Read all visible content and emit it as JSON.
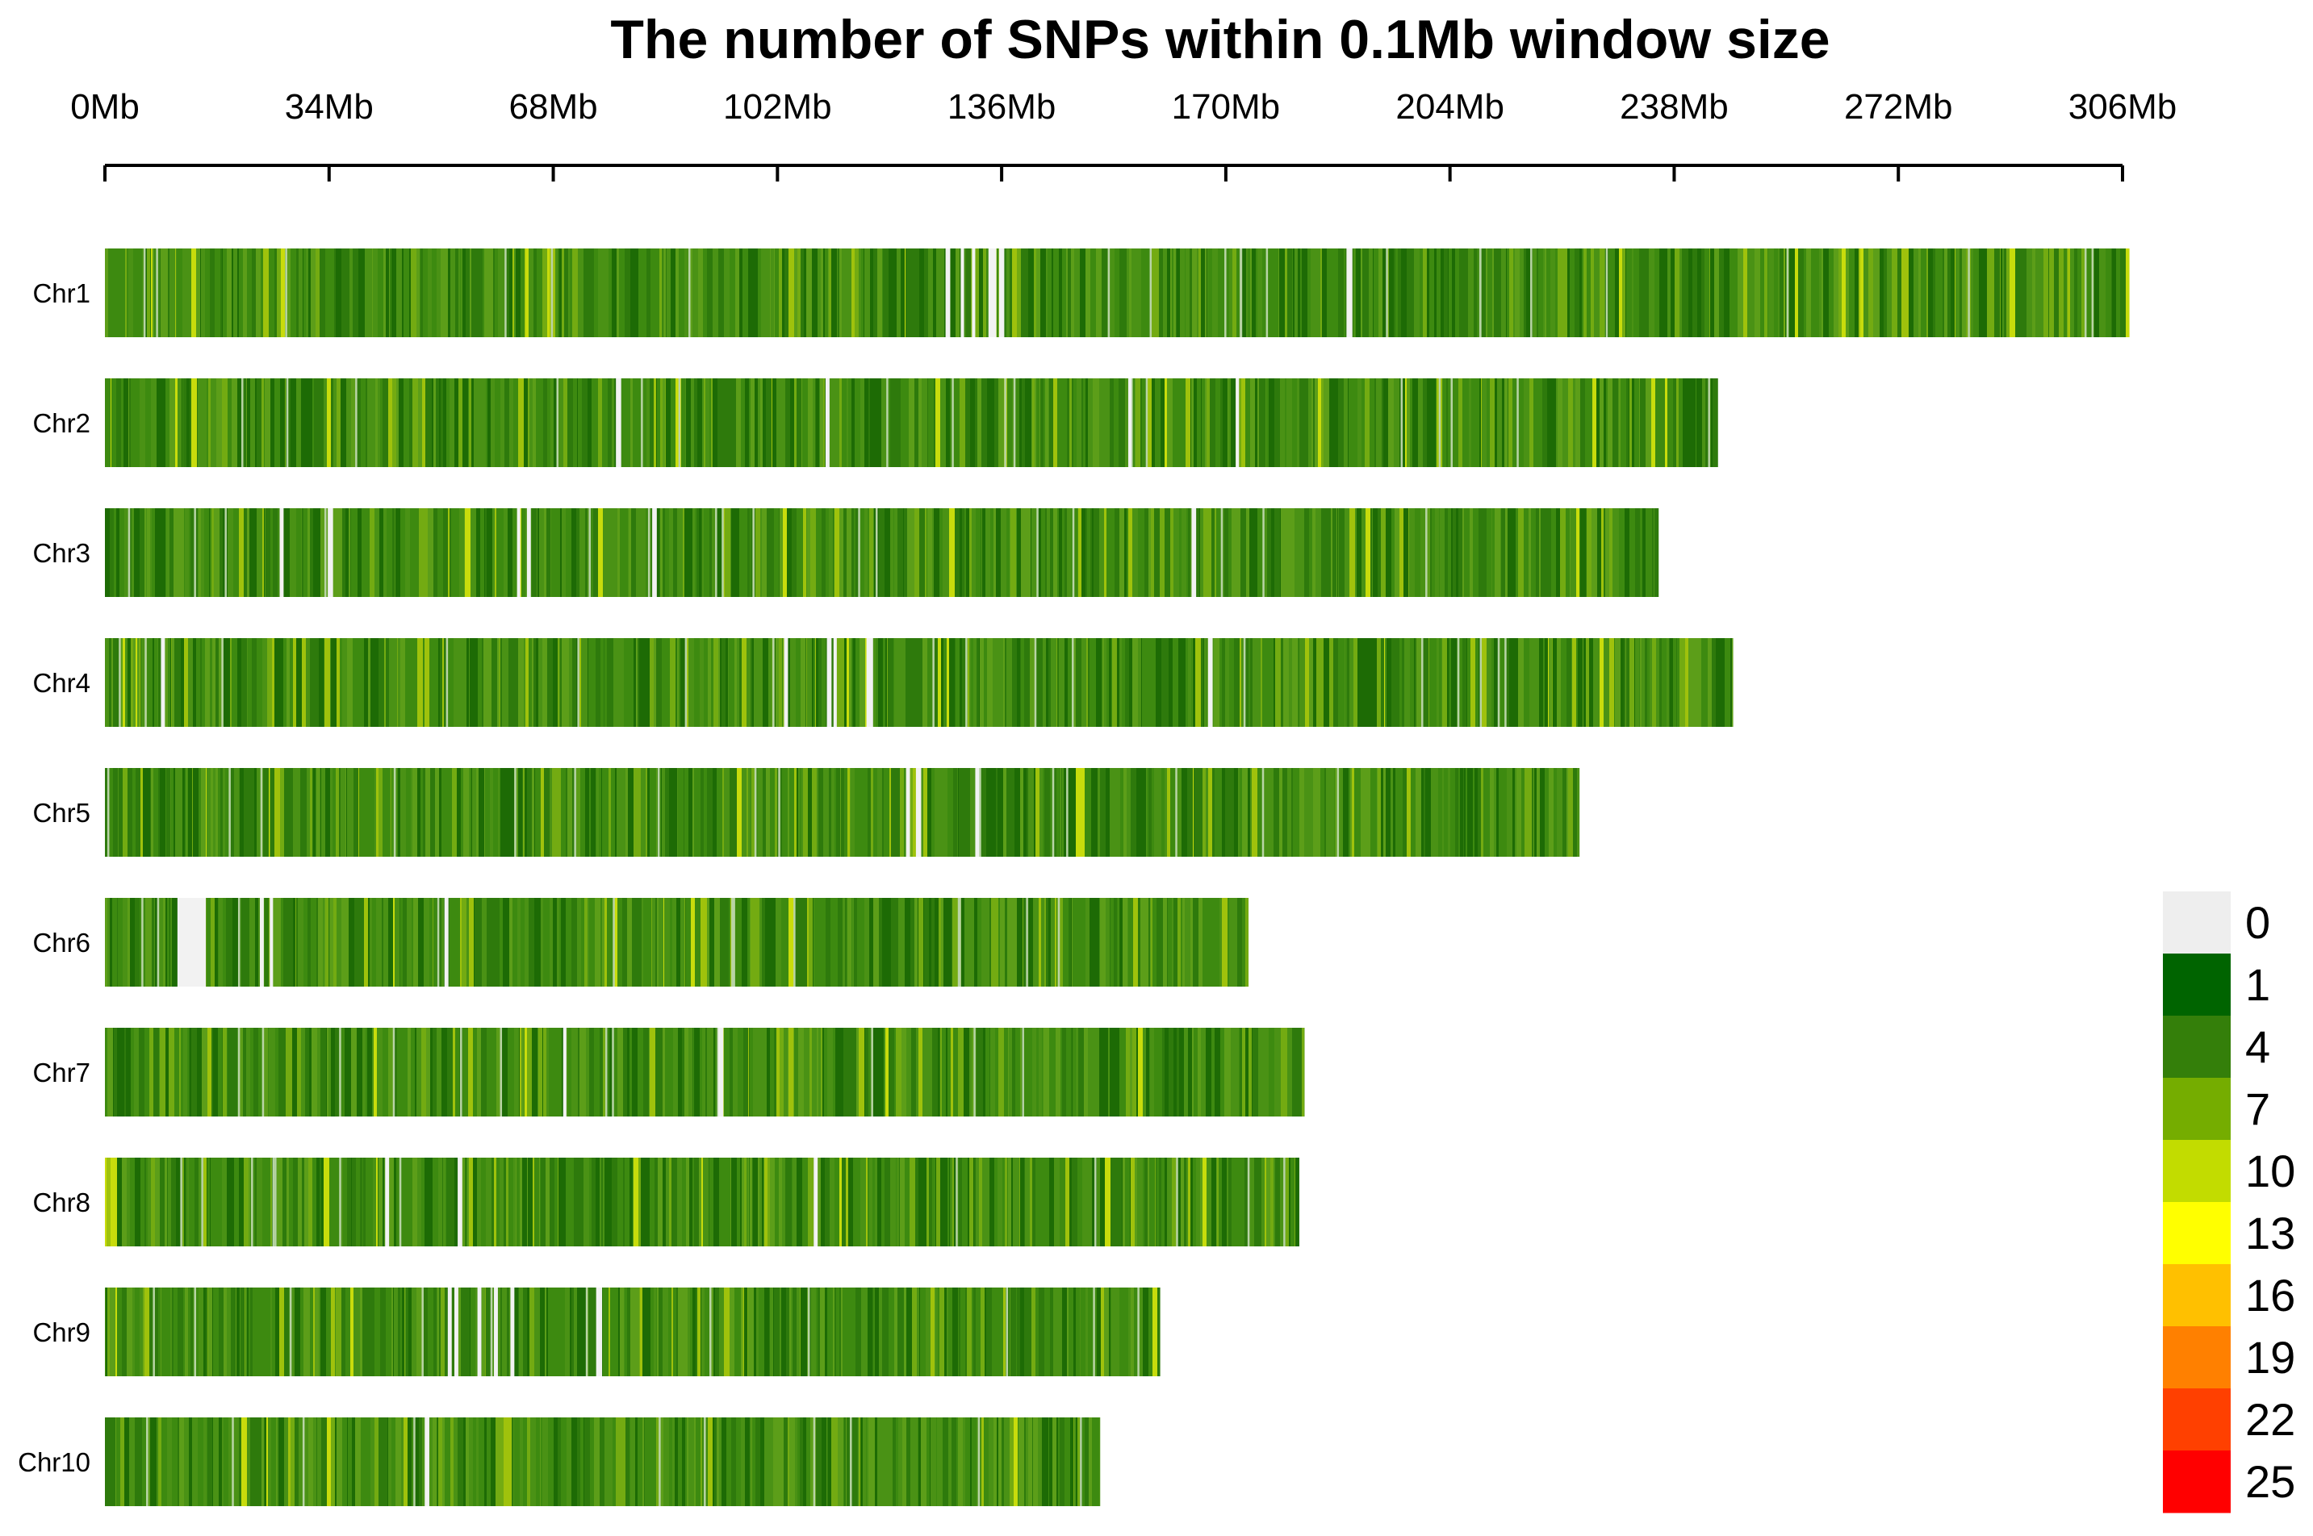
{
  "chart_data": {
    "type": "heatmap",
    "title": "The number of SNPs within 0.1Mb window size",
    "window_size_mb": 0.1,
    "x_unit": "Mb",
    "x_ticks": [
      0,
      34,
      68,
      102,
      136,
      170,
      204,
      238,
      272,
      306
    ],
    "x_tick_labels": [
      "0Mb",
      "34Mb",
      "68Mb",
      "102Mb",
      "136Mb",
      "170Mb",
      "204Mb",
      "238Mb",
      "272Mb",
      "306Mb"
    ],
    "xlim": [
      0,
      306
    ],
    "chromosomes": [
      {
        "name": "Chr1",
        "length_mb": 307.0,
        "gaps_mb": [
          [
            127.5,
            128.2
          ],
          [
            129.8,
            130.3
          ],
          [
            131.5,
            132.0
          ],
          [
            134.0,
            135.2
          ],
          [
            135.6,
            136.4
          ],
          [
            188.3,
            189.2
          ]
        ]
      },
      {
        "name": "Chr2",
        "length_mb": 244.6,
        "gaps_mb": [
          [
            77.5,
            78.3
          ],
          [
            109.3,
            109.9
          ],
          [
            155.2,
            155.7
          ],
          [
            171.5,
            172.0
          ]
        ]
      },
      {
        "name": "Chr3",
        "length_mb": 235.6,
        "gaps_mb": [
          [
            26.5,
            27.1
          ],
          [
            33.8,
            34.6
          ],
          [
            62.5,
            63.0
          ],
          [
            64.0,
            64.6
          ],
          [
            83.0,
            83.7
          ],
          [
            164.8,
            165.5
          ]
        ]
      },
      {
        "name": "Chr4",
        "length_mb": 246.9,
        "gaps_mb": [
          [
            8.5,
            9.1
          ],
          [
            103.0,
            103.6
          ],
          [
            109.5,
            110.2
          ],
          [
            110.5,
            111.0
          ],
          [
            115.5,
            116.5
          ],
          [
            167.3,
            168.0
          ]
        ]
      },
      {
        "name": "Chr5",
        "length_mb": 223.6,
        "gaps_mb": [
          [
            121.5,
            122.1
          ],
          [
            123.0,
            123.8
          ],
          [
            132.0,
            132.6
          ]
        ]
      },
      {
        "name": "Chr6",
        "length_mb": 173.4,
        "gaps_mb": [
          [
            11.0,
            15.3
          ],
          [
            23.5,
            24.1
          ],
          [
            25.0,
            25.5
          ],
          [
            51.5,
            52.1
          ]
        ]
      },
      {
        "name": "Chr7",
        "length_mb": 181.9,
        "gaps_mb": [
          [
            69.5,
            70.0
          ],
          [
            93.0,
            93.8
          ]
        ]
      },
      {
        "name": "Chr8",
        "length_mb": 181.1,
        "gaps_mb": [
          [
            42.5,
            43.1
          ],
          [
            53.5,
            54.2
          ],
          [
            107.5,
            108.1
          ]
        ]
      },
      {
        "name": "Chr9",
        "length_mb": 160.0,
        "gaps_mb": [
          [
            52.0,
            52.6
          ],
          [
            53.0,
            53.6
          ],
          [
            56.5,
            57.1
          ],
          [
            59.0,
            59.6
          ],
          [
            61.5,
            62.1
          ],
          [
            74.5,
            75.4
          ]
        ]
      },
      {
        "name": "Chr10",
        "length_mb": 150.9,
        "gaps_mb": [
          [
            48.5,
            49.2
          ]
        ]
      }
    ],
    "legend": {
      "labels": [
        "0",
        "1",
        "4",
        "7",
        "10",
        "13",
        "16",
        "19",
        "22",
        "25"
      ],
      "colors": [
        "#eeeeee",
        "#006400",
        "#347f0a",
        "#75ad00",
        "#c2dc00",
        "#ffff00",
        "#ffc000",
        "#ff8000",
        "#ff4000",
        "#ff0000"
      ]
    }
  }
}
